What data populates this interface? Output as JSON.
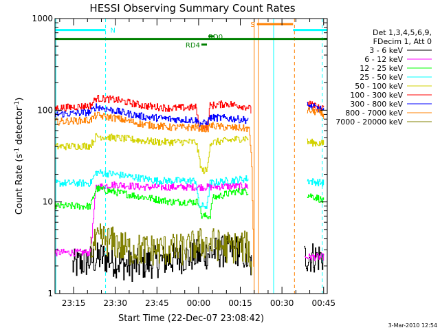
{
  "chart_data": {
    "type": "line",
    "title": "HESSI Observing Summary Count Rates",
    "xlabel": "Start Time (22-Dec-07 23:08:42)",
    "ylabel_main": "Count Rate (s",
    "ylabel_sup": "-1",
    "ylabel_mid": " detector",
    "ylabel_sup2": "-1",
    "ylabel_end": ")",
    "yscale": "log",
    "ylim": [
      1,
      1000
    ],
    "xlim_minutes": [
      -6.7,
      91.3
    ],
    "x_ticks": [
      {
        "t": 0,
        "label": "23:15"
      },
      {
        "t": 15,
        "label": "23:30"
      },
      {
        "t": 30,
        "label": "23:45"
      },
      {
        "t": 45,
        "label": "00:00"
      },
      {
        "t": 60,
        "label": "00:15"
      },
      {
        "t": 75,
        "label": "00:30"
      },
      {
        "t": 90,
        "label": "00:45"
      }
    ],
    "y_ticks": [
      {
        "v": 1,
        "label": "1"
      },
      {
        "v": 10,
        "label": "10"
      },
      {
        "v": 100,
        "label": "100"
      },
      {
        "v": 1000,
        "label": "1000"
      }
    ],
    "legend_header": [
      "Det 1,3,4,5,6,9,",
      "FDecim 1, Att 0"
    ],
    "series": [
      {
        "name": "3 - 6 keV",
        "color": "#000000",
        "segments": [
          [
            [
              -0.5,
              2
            ],
            [
              10,
              2.5
            ],
            [
              20,
              2
            ],
            [
              40,
              2.5
            ],
            [
              50,
              2.8
            ],
            [
              60,
              3
            ],
            [
              64,
              2
            ]
          ],
          [
            [
              83,
              2.5
            ],
            [
              90,
              2.5
            ]
          ]
        ]
      },
      {
        "name": "6 - 12 keV",
        "color": "#ff00ff",
        "segments": [
          [
            [
              -6.7,
              2.8
            ],
            [
              6,
              2.8
            ],
            [
              8,
              14.5
            ],
            [
              15,
              15.5
            ],
            [
              25,
              14.5
            ],
            [
              35,
              14.5
            ],
            [
              44,
              14.5
            ],
            [
              48,
              14.5
            ],
            [
              55,
              14.8
            ],
            [
              63,
              14.8
            ]
          ],
          [
            [
              83,
              2.5
            ],
            [
              90,
              2.5
            ]
          ]
        ]
      },
      {
        "name": "12 - 25 keV",
        "color": "#00ff00",
        "segments": [
          [
            [
              -6.7,
              9
            ],
            [
              6,
              9
            ],
            [
              8,
              14
            ],
            [
              20,
              12
            ],
            [
              35,
              10
            ],
            [
              45,
              10
            ],
            [
              46,
              7
            ],
            [
              49,
              7
            ],
            [
              50,
              11
            ],
            [
              58,
              13
            ],
            [
              63,
              13
            ]
          ],
          [
            [
              84,
              12
            ],
            [
              88,
              11
            ],
            [
              90,
              10
            ]
          ]
        ]
      },
      {
        "name": "25 - 50 keV",
        "color": "#00ffff",
        "segments": [
          [
            [
              -6.7,
              16
            ],
            [
              6,
              16
            ],
            [
              8,
              21
            ],
            [
              15,
              20
            ],
            [
              30,
              17
            ],
            [
              44,
              17
            ],
            [
              45,
              9
            ],
            [
              48,
              9
            ],
            [
              49,
              16
            ],
            [
              55,
              17
            ],
            [
              63,
              18
            ]
          ],
          [
            [
              84,
              17
            ],
            [
              90,
              16
            ]
          ]
        ]
      },
      {
        "name": "50 - 100 keV",
        "color": "#d2d200",
        "segments": [
          [
            [
              -6.7,
              40
            ],
            [
              6,
              41
            ],
            [
              8,
              52
            ],
            [
              15,
              50
            ],
            [
              30,
              45
            ],
            [
              44,
              45
            ],
            [
              46,
              22
            ],
            [
              48,
              22
            ],
            [
              49,
              44
            ],
            [
              58,
              48
            ],
            [
              63,
              50
            ]
          ],
          [
            [
              84,
              45
            ],
            [
              90,
              43
            ]
          ]
        ]
      },
      {
        "name": "100 - 300 keV",
        "color": "#ff0000",
        "segments": [
          [
            [
              -6.7,
              105
            ],
            [
              6,
              112
            ],
            [
              8,
              135
            ],
            [
              15,
              130
            ],
            [
              25,
              112
            ],
            [
              35,
              105
            ],
            [
              44,
              108
            ],
            [
              45,
              65
            ],
            [
              48,
              65
            ],
            [
              49,
              112
            ],
            [
              55,
              118
            ],
            [
              63,
              108
            ],
            [
              64,
              95
            ]
          ],
          [
            [
              84,
              118
            ],
            [
              88,
              108
            ],
            [
              90,
              102
            ]
          ]
        ]
      },
      {
        "name": "300 - 800 keV",
        "color": "#0000ff",
        "segments": [
          [
            [
              -6.7,
              90
            ],
            [
              6,
              95
            ],
            [
              8,
              110
            ],
            [
              15,
              98
            ],
            [
              25,
              85
            ],
            [
              35,
              80
            ],
            [
              44,
              78
            ],
            [
              45,
              72
            ],
            [
              48,
              72
            ],
            [
              49,
              83
            ],
            [
              55,
              82
            ],
            [
              63,
              78
            ]
          ],
          [
            [
              84,
              112
            ],
            [
              88,
              105
            ],
            [
              90,
              98
            ]
          ]
        ]
      },
      {
        "name": "800 - 7000 keV",
        "color": "#ff8000",
        "segments": [
          [
            [
              -6.7,
              75
            ],
            [
              6,
              78
            ],
            [
              8,
              88
            ],
            [
              15,
              82
            ],
            [
              25,
              70
            ],
            [
              35,
              65
            ],
            [
              44,
              65
            ],
            [
              48,
              62
            ],
            [
              49,
              68
            ],
            [
              55,
              65
            ],
            [
              63,
              63
            ],
            [
              64,
              30
            ],
            [
              65,
              1
            ]
          ],
          [
            [
              84,
              100
            ],
            [
              88,
              95
            ],
            [
              90,
              88
            ]
          ]
        ]
      },
      {
        "name": "7000 - 20000 keV",
        "color": "#808000",
        "segments": [
          [
            [
              6,
              3
            ],
            [
              10,
              4
            ],
            [
              15,
              3.5
            ],
            [
              20,
              3
            ],
            [
              25,
              3
            ],
            [
              30,
              3
            ],
            [
              40,
              3
            ],
            [
              45,
              3.5
            ],
            [
              50,
              3.5
            ],
            [
              55,
              3.2
            ],
            [
              63,
              3.2
            ],
            [
              64,
              1.5
            ]
          ]
        ]
      }
    ],
    "state_bars": [
      {
        "label": "N",
        "color": "#00ffff",
        "t_start": -6.7,
        "t_end": 11.5,
        "y": 750
      },
      {
        "label": "",
        "color": "#00ffff",
        "t_start": 79,
        "t_end": 91.3,
        "y": 750
      },
      {
        "label": "S",
        "color": "#ff8000",
        "t_start": 66,
        "t_end": 79,
        "y": 870
      },
      {
        "label": "",
        "color": "#008000",
        "t_start": -6.7,
        "t_end": 91.3,
        "y": 600
      },
      {
        "label": "RD4",
        "color": "#008000",
        "t_start": 46,
        "t_end": 48,
        "y": 520
      },
      {
        "label": "RD0",
        "color": "#008000",
        "t_start": 48.5,
        "t_end": 50.5,
        "y": 640
      }
    ],
    "vlines": [
      {
        "t": 11.5,
        "color": "#00ffff",
        "style": "dashed"
      },
      {
        "t": 89.5,
        "color": "#00ffff",
        "style": "dashed"
      },
      {
        "t": 79.5,
        "color": "#ff8000",
        "style": "dashed"
      },
      {
        "t": -6.4,
        "color": "#00ffff",
        "style": "solid"
      },
      {
        "t": 72,
        "color": "#00ffff",
        "style": "solid"
      },
      {
        "t": 65,
        "color": "#ff8000",
        "style": "solid"
      },
      {
        "t": 66.5,
        "color": "#ff8000",
        "style": "solid"
      }
    ],
    "timestamp": "3-Mar-2010 12:54"
  }
}
